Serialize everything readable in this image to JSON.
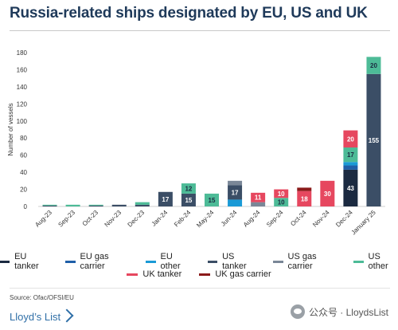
{
  "title": "Russia-related ships designated by EU, US and UK",
  "source": "Source: Ofac/OFSI/EU",
  "brand": "Lloyd’s List",
  "watermark": "公众号 · LloydsList",
  "chart_data": {
    "type": "bar",
    "stacked": true,
    "categories": [
      "Aug-23",
      "Sep-23",
      "Oct-23",
      "Nov-23",
      "Dec-23",
      "Jan-24",
      "Feb-24",
      "May-24",
      "Jun-24",
      "Aug-24",
      "Sep-24",
      "Oct-24",
      "Nov-24",
      "Dec-24",
      "January 25"
    ],
    "ylabel": "Number of vessels",
    "ylim": [
      0,
      180
    ],
    "yticks": [
      0,
      20,
      40,
      60,
      80,
      100,
      120,
      140,
      160,
      180
    ],
    "grid": false,
    "legend_position": "bottom",
    "series": [
      {
        "name": "EU tanker",
        "color": "#1b2a41",
        "values": [
          0,
          0,
          0,
          0,
          0,
          0,
          0,
          0,
          0,
          0,
          0,
          0,
          0,
          43,
          0
        ]
      },
      {
        "name": "EU gas carrier",
        "color": "#1f5fa8",
        "values": [
          0,
          0,
          0,
          0,
          0,
          0,
          0,
          0,
          0,
          0,
          0,
          0,
          0,
          5,
          0
        ]
      },
      {
        "name": "EU other",
        "color": "#1a9ad6",
        "values": [
          0,
          0,
          0,
          0,
          0,
          0,
          0,
          0,
          8,
          0,
          0,
          0,
          0,
          4,
          0
        ]
      },
      {
        "name": "US tanker",
        "color": "#3b4e66",
        "values": [
          1,
          0,
          1,
          2,
          2,
          17,
          15,
          0,
          17,
          0,
          0,
          0,
          0,
          0,
          155
        ]
      },
      {
        "name": "US gas carrier",
        "color": "#7a8797",
        "values": [
          0,
          0,
          0,
          0,
          0,
          0,
          0,
          0,
          5,
          5,
          0,
          0,
          0,
          0,
          0
        ]
      },
      {
        "name": "US other",
        "color": "#4dbb97",
        "values": [
          1,
          2,
          1,
          0,
          3,
          0,
          12,
          15,
          0,
          0,
          10,
          0,
          0,
          17,
          20
        ]
      },
      {
        "name": "UK tanker",
        "color": "#e6475f",
        "values": [
          0,
          0,
          0,
          0,
          0,
          0,
          0,
          0,
          0,
          11,
          10,
          18,
          30,
          20,
          0
        ]
      },
      {
        "name": "UK gas carrier",
        "color": "#8b1a1a",
        "values": [
          0,
          0,
          0,
          0,
          0,
          0,
          0,
          0,
          0,
          0,
          0,
          4,
          0,
          0,
          0
        ]
      }
    ],
    "data_labels": [
      {
        "category": "Jan-24",
        "series": "US tanker",
        "text": "17"
      },
      {
        "category": "Feb-24",
        "series": "US tanker",
        "text": "15"
      },
      {
        "category": "Feb-24",
        "series": "US other",
        "text": "12"
      },
      {
        "category": "May-24",
        "series": "US other",
        "text": "15"
      },
      {
        "category": "Jun-24",
        "series": "US tanker",
        "text": "17"
      },
      {
        "category": "Aug-24",
        "series": "UK tanker",
        "text": "11"
      },
      {
        "category": "Sep-24",
        "series": "US other",
        "text": "10"
      },
      {
        "category": "Sep-24",
        "series": "UK tanker",
        "text": "10"
      },
      {
        "category": "Oct-24",
        "series": "UK tanker",
        "text": "18"
      },
      {
        "category": "Nov-24",
        "series": "UK tanker",
        "text": "30"
      },
      {
        "category": "Dec-24",
        "series": "EU tanker",
        "text": "43"
      },
      {
        "category": "Dec-24",
        "series": "US other",
        "text": "17"
      },
      {
        "category": "Dec-24",
        "series": "UK tanker",
        "text": "20"
      },
      {
        "category": "January 25",
        "series": "US tanker",
        "text": "155"
      },
      {
        "category": "January 25",
        "series": "US other",
        "text": "20"
      }
    ]
  }
}
